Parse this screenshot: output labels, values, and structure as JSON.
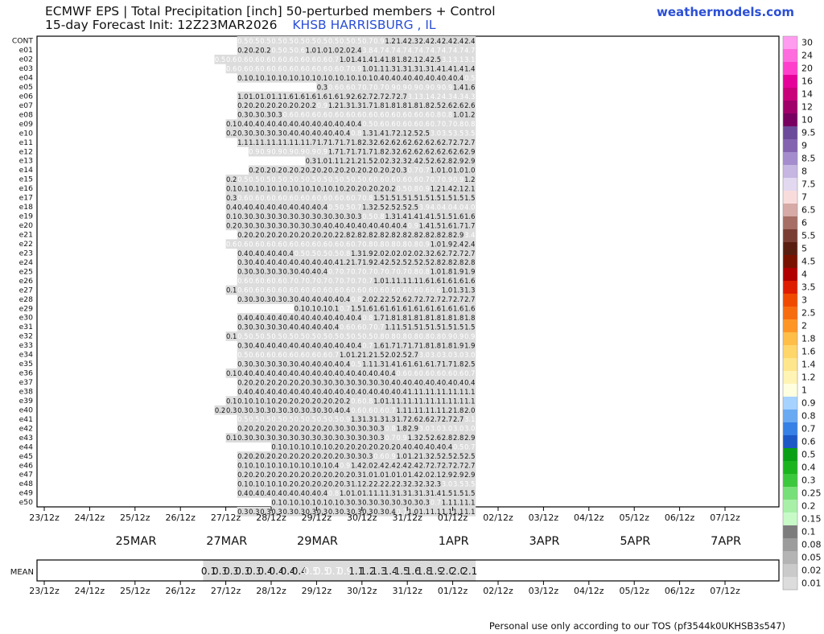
{
  "header": {
    "title": "ECMWF EPS | Total Precipitation [inch]  50-perturbed members + Control",
    "init_prefix": "15-day Forecast Init: 12Z23MAR2026",
    "station": "KHSB HARRISBURG     , IL",
    "site": "weathermodels.com"
  },
  "footer": "Personal use only according to our TOS (pf3544k0UKHSB3s547)",
  "mean_label": "MEAN",
  "chart_data": {
    "type": "heatmap",
    "title": "ECMWF EPS | Total Precipitation [inch]",
    "subtitle": "15-day Forecast Init: 12Z23MAR2026 — KHSB HARRISBURG, IL",
    "units": "inch",
    "x_ticks": [
      "23/12z",
      "24/12z",
      "25/12z",
      "26/12z",
      "27/12z",
      "28/12z",
      "29/12z",
      "30/12z",
      "31/12z",
      "01/12z",
      "02/12z",
      "03/12z",
      "04/12z",
      "05/12z",
      "06/12z",
      "07/12z"
    ],
    "date_labels": [
      "25MAR",
      "27MAR",
      "29MAR",
      "1APR",
      "3APR",
      "5APR",
      "7APR"
    ],
    "members": [
      "CONT",
      "e01",
      "e02",
      "e03",
      "e04",
      "e05",
      "e06",
      "e07",
      "e08",
      "e09",
      "e10",
      "e11",
      "e12",
      "e13",
      "e14",
      "e15",
      "e16",
      "e17",
      "e18",
      "e19",
      "e20",
      "e21",
      "e22",
      "e23",
      "e24",
      "e25",
      "e26",
      "e27",
      "e28",
      "e29",
      "e30",
      "e31",
      "e32",
      "e33",
      "e34",
      "e35",
      "e36",
      "e37",
      "e38",
      "e39",
      "e40",
      "e41",
      "e42",
      "e43",
      "e44",
      "e45",
      "e46",
      "e47",
      "e48",
      "e49",
      "e50"
    ],
    "rows": [
      "0.5 0.5 0.5 0.5 0.5 0.5 0.5 0.5 0.5 0.5 0.5 0.7 0.9 1.2 1.4 2.3 2.4 2.4 2.4 2.4 2.4",
      "0.2 0.2 0.2 0.5 0.5 0.6 1.0 1.0 1.0 2.0 2.4 3.8 4.7 4.7 4.7 4.7 4.7 4.7 4.7 4.7 4.7",
      "0.5 0.6 0.6 0.6 0.6 0.6 0.6 0.6 0.6 0.6 0.7 1.0 1.4 1.4 1.4 1.8 1.8 2.1 2.4 2.5 3.1 3.1 3.1",
      "0.6 0.6 0.6 0.6 0.6 0.6 0.6 0.6 0.6 0.6 0.7 0.9 1.0 1.1 1.3 1.3 1.3 1.3 1.4 1.4 1.4 1.4",
      "0.1 0.1 0.1 0.1 0.1 0.1 0.1 0.1 0.1 0.1 0.1 0.1 0.4 0.4 0.4 0.4 0.4 0.4 0.4 0.4 0.5",
      "0.3 0.6 0.6 0.7 0.7 0.7 0.9 0.9 0.9 0.9 0.9 0.9 1.4 1.6",
      "1.0 1.0 1.0 1.1 1.6 1.6 1.6 1.6 1.6 1.9 2.6 2.7 2.7 2.7 2.7 3.1 3.1 4.2 4.3 4.3 4.3",
      "0.2 0.2 0.2 0.2 0.2 0.2 0.2 0.9 1.2 1.3 1.3 1.7 1.8 1.8 1.8 1.8 1.8 2.5 2.6 2.6 2.6",
      "0.3 0.3 0.3 0.3 0.6 0.6 0.6 0.6 0.6 0.6 0.6 0.6 0.6 0.6 0.6 0.6 0.6 0.8 0.8 1.0 1.2",
      "0.1 0.4 0.4 0.4 0.4 0.4 0.4 0.4 0.4 0.4 0.4 0.4 0.5 0.6 0.6 0.6 0.6 0.6 0.7 0.7 0.8 0.8",
      "0.2 0.3 0.3 0.3 0.3 0.4 0.4 0.4 0.4 0.4 0.4 0.8 1.3 1.4 1.7 2.1 2.5 2.5 3.0 3.5 3.5 3.5",
      "1.1 1.1 1.1 1.1 1.1 1.1 1.7 1.7 1.7 1.7 1.8 2.3 2.6 2.6 2.6 2.6 2.6 2.6 2.7 2.7 2.7",
      "0.9 0.9 0.9 0.9 0.9 0.9 0.9 1.7 1.7 1.7 1.7 1.8 2.3 2.6 2.6 2.6 2.6 2.6 2.6 2.9",
      "0.3 1.0 1.1 1.2 1.2 1.5 2.0 2.3 2.3 2.4 2.5 2.6 2.8 2.9 2.9",
      "0.2 0.2 0.2 0.2 0.2 0.2 0.2 0.2 0.2 0.2 0.2 0.2 0.2 0.3 0.7 0.7 1.0 1.0 1.0 1.0",
      "0.2 0.5 0.5 0.5 0.5 0.5 0.5 0.5 0.5 0.5 0.5 0.5 0.6 0.6 0.6 0.6 0.6 0.7 0.7 0.9 0.9 1.2",
      "0.1 0.1 0.1 0.1 0.1 0.1 0.1 0.1 0.1 0.1 0.2 0.2 0.2 0.2 0.2 0.5 0.8 0.9 1.2 1.4 2.1 2.1",
      "0.3 0.6 0.6 0.6 0.6 0.6 0.6 0.6 0.6 0.6 0.6 0.7 0.8 1.5 1.5 1.5 1.5 1.5 1.5 1.5 1.5 1.5",
      "0.4 0.4 0.4 0.4 0.4 0.4 0.4 0.4 0.4 0.5 0.5 0.7 1.3 2.5 2.5 2.5 2.5 3.9 4.0 4.0 4.0 4.0",
      "0.1 0.3 0.3 0.3 0.3 0.3 0.3 0.3 0.3 0.3 0.3 0.3 0.5 0.8 1.3 1.4 1.4 1.4 1.5 1.5 1.6 1.6",
      "0.2 0.3 0.3 0.3 0.3 0.3 0.3 0.3 0.4 0.4 0.4 0.4 0.4 0.4 0.4 0.4 0.9 1.4 1.5 1.6 1.7 1.7",
      "0.2 0.2 0.2 0.2 0.2 0.2 0.2 0.2 0.2 2.8 2.8 2.8 2.8 2.8 2.8 2.8 2.8 2.8 2.8 2.9 3.4",
      "0.6 0.6 0.6 0.6 0.6 0.6 0.6 0.6 0.6 0.6 0.6 0.7 0.8 0.8 0.8 0.8 0.8 0.9 1.0 1.9 2.4 2.4",
      "0.4 0.4 0.4 0.4 0.4 0.5 0.5 0.5 0.5 0.8 1.3 1.9 2.0 2.0 2.0 2.0 2.3 2.6 2.7 2.7 2.7",
      "0.3 0.4 0.4 0.4 0.4 0.4 0.4 0.4 0.4 1.2 1.7 1.9 2.4 2.5 2.5 2.5 2.5 2.8 2.8 2.8 2.8",
      "0.3 0.3 0.3 0.3 0.3 0.4 0.4 0.4 0.7 0.7 0.7 0.7 0.7 0.7 0.7 0.8 0.8 1.0 1.8 1.9 1.9",
      "0.6 0.6 0.6 0.6 0.7 0.7 0.7 0.7 0.7 0.7 0.7 0.7 1.0 1.1 1.1 1.1 1.6 1.6 1.6 1.6 1.6",
      "0.1 0.6 0.6 0.6 0.6 0.6 0.6 0.6 0.6 0.6 0.6 0.6 0.6 0.6 0.6 0.6 0.6 0.6 0.6 1.0 1.3 1.3",
      "0.3 0.3 0.3 0.3 0.3 0.4 0.4 0.4 0.4 0.4 0.8 2.0 2.2 2.5 2.6 2.7 2.7 2.7 2.7 2.7 2.7",
      "0.1 0.1 0.1 0.1 0.7 1.5 1.6 1.6 1.6 1.6 1.6 1.6 1.6 1.6 1.6 1.6",
      "0.4 0.4 0.4 0.4 0.4 0.4 0.4 0.4 0.4 0.4 0.4 0.8 1.7 1.8 1.8 1.8 1.8 1.8 1.8 1.8 1.8",
      "0.3 0.3 0.3 0.3 0.4 0.4 0.4 0.4 0.4 0.6 0.6 0.7 0.7 1.1 1.5 1.5 1.5 1.5 1.5 1.5 1.5",
      "0.1 0.5 0.5 0.5 0.5 0.5 0.5 0.5 0.5 0.5 0.5 0.5 0.5 0.8 0.8 0.8 0.8 0.8 0.8 0.9 0.9 0.9",
      "0.3 0.4 0.4 0.4 0.4 0.4 0.4 0.4 0.4 0.4 0.4 0.7 1.6 1.7 1.7 1.7 1.8 1.8 1.8 1.9 1.9",
      "0.5 0.6 0.6 0.6 0.6 0.6 0.6 0.6 0.7 1.0 1.2 1.2 1.5 2.0 2.5 2.7 3.0 3.0 3.0 3.0 3.0",
      "0.3 0.3 0.3 0.3 0.3 0.4 0.4 0.4 0.4 0.4 0.5 1.1 1.3 1.4 1.6 1.6 1.6 1.7 1.7 1.8 2.5",
      "0.1 0.4 0.4 0.4 0.4 0.4 0.4 0.4 0.4 0.4 0.4 0.4 0.4 0.4 0.4 0.6 0.6 0.6 0.6 0.6 0.6 0.7",
      "0.2 0.2 0.2 0.2 0.2 0.2 0.3 0.3 0.3 0.3 0.3 0.3 0.3 0.4 0.4 0.4 0.4 0.4 0.4 0.4 0.4",
      "0.4 0.4 0.4 0.4 0.4 0.4 0.4 0.4 0.4 0.4 0.4 0.4 0.4 0.4 0.4 1.1 1.1 1.1 1.1 1.1 1.1",
      "0.1 0.1 0.1 0.1 0.2 0.2 0.2 0.2 0.2 0.2 0.2 0.6 0.8 1.0 1.1 1.1 1.1 1.1 1.1 1.1 1.1 1.1",
      "0.2 0.3 0.3 0.3 0.3 0.3 0.3 0.3 0.3 0.3 0.4 0.4 0.6 0.6 0.6 0.7 1.1 1.1 1.1 1.1 1.2 1.8 2.0",
      "0.5 0.5 0.5 0.5 0.5 0.5 0.5 0.5 0.5 0.9 1.3 1.3 1.3 1.3 1.7 2.6 2.6 2.7 2.7 2.7 3.1",
      "0.2 0.2 0.2 0.2 0.2 0.2 0.2 0.2 0.3 0.3 0.3 0.3 0.3 0.8 1.8 2.9 3.0 3.0 3.0 3.0 3.0",
      "0.1 0.3 0.3 0.3 0.3 0.3 0.3 0.3 0.3 0.3 0.3 0.3 0.3 0.3 0.7 0.9 1.3 2.5 2.6 2.8 2.8 2.9",
      "0.1 0.1 0.1 0.1 0.1 0.2 0.2 0.2 0.2 0.2 0.2 0.4 0.4 0.4 0.4 0.4 0.5 0.7",
      "0.2 0.2 0.2 0.2 0.2 0.2 0.2 0.2 0.2 0.3 0.3 0.3 0.6 0.9 1.0 1.2 1.3 2.5 2.5 2.5 2.5",
      "0.1 0.1 0.1 0.1 0.1 0.1 0.1 0.1 0.4 0.9 1.4 2.0 2.4 2.4 2.4 2.4 2.7 2.7 2.7 2.7 2.7",
      "0.2 0.2 0.2 0.2 0.2 0.2 0.2 0.2 0.2 0.2 0.3 1.0 1.0 1.0 1.0 1.4 2.0 2.1 2.9 2.9 2.9",
      "0.1 0.1 0.1 0.1 0.2 0.2 0.2 0.2 0.2 0.3 1.1 2.2 2.2 2.2 2.3 2.3 2.3 2.3 3.0 3.5 3.5",
      "0.4 0.4 0.4 0.4 0.4 0.4 0.4 0.4 0.8 1.0 1.0 1.1 1.1 1.3 1.3 1.3 1.3 1.4 1.5 1.5 1.5",
      "0.1 0.1 0.1 0.1 0.1 0.1 0.3 0.3 0.3 0.3 0.3 0.3 0.3 0.3 0.7 1.1 1.1 1.1",
      "0.3 0.3 0.3 0.3 0.3 0.3 0.3 0.3 0.3 0.3 0.3 0.3 0.3 0.4 0.7 1.0 1.1 1.1 1.1 1.1 1.1"
    ],
    "mean_values": [
      0.1,
      0.3,
      0.3,
      0.3,
      0.3,
      0.4,
      0.4,
      0.4,
      0.4,
      0.5,
      0.5,
      0.7,
      0.9,
      1.1,
      1.2,
      1.3,
      1.4,
      1.5,
      1.6,
      1.8,
      1.9,
      2.0,
      2.0,
      2.1
    ],
    "colorbar": [
      {
        "label": "30",
        "color": "#ff9cf0"
      },
      {
        "label": "24",
        "color": "#ff6cde"
      },
      {
        "label": "20",
        "color": "#ff3fcc"
      },
      {
        "label": "16",
        "color": "#e6009a"
      },
      {
        "label": "14",
        "color": "#c8007a"
      },
      {
        "label": "12",
        "color": "#a0006a"
      },
      {
        "label": "10",
        "color": "#780060"
      },
      {
        "label": "9.5",
        "color": "#6c4b9a"
      },
      {
        "label": "9",
        "color": "#8463b0"
      },
      {
        "label": "8.5",
        "color": "#a48ccd"
      },
      {
        "label": "8",
        "color": "#c6b6e2"
      },
      {
        "label": "7.5",
        "color": "#e2d8f0"
      },
      {
        "label": "7",
        "color": "#f8dcdc"
      },
      {
        "label": "6.5",
        "color": "#d6aaa6"
      },
      {
        "label": "6",
        "color": "#a66e64"
      },
      {
        "label": "5.5",
        "color": "#7a3e34"
      },
      {
        "label": "5",
        "color": "#5a1e10"
      },
      {
        "label": "4.5",
        "color": "#7a1200"
      },
      {
        "label": "4",
        "color": "#b00000"
      },
      {
        "label": "3.5",
        "color": "#de1c00"
      },
      {
        "label": "3",
        "color": "#f04a00"
      },
      {
        "label": "2.5",
        "color": "#f86c10"
      },
      {
        "label": "2",
        "color": "#fe9626"
      },
      {
        "label": "1.8",
        "color": "#febe48"
      },
      {
        "label": "1.6",
        "color": "#fed66a"
      },
      {
        "label": "1.4",
        "color": "#fee68c"
      },
      {
        "label": "1.2",
        "color": "#fff4b4"
      },
      {
        "label": "1",
        "color": "#ffffe0"
      },
      {
        "label": "0.9",
        "color": "#a6d2ff"
      },
      {
        "label": "0.8",
        "color": "#6aaaf2"
      },
      {
        "label": "0.7",
        "color": "#3680e6"
      },
      {
        "label": "0.6",
        "color": "#1c58c6"
      },
      {
        "label": "0.5",
        "color": "#0aa016"
      },
      {
        "label": "0.4",
        "color": "#1cb41e"
      },
      {
        "label": "0.3",
        "color": "#3cc83c"
      },
      {
        "label": "0.25",
        "color": "#78e078"
      },
      {
        "label": "0.2",
        "color": "#a8f0a8"
      },
      {
        "label": "0.15",
        "color": "#c8fac8"
      },
      {
        "label": "0.1",
        "color": "#7c7c7c"
      },
      {
        "label": "0.08",
        "color": "#9c9c9c"
      },
      {
        "label": "0.05",
        "color": "#b4b4b4"
      },
      {
        "label": "0.02",
        "color": "#cacaca"
      },
      {
        "label": "0.01",
        "color": "#dcdcdc"
      }
    ]
  }
}
